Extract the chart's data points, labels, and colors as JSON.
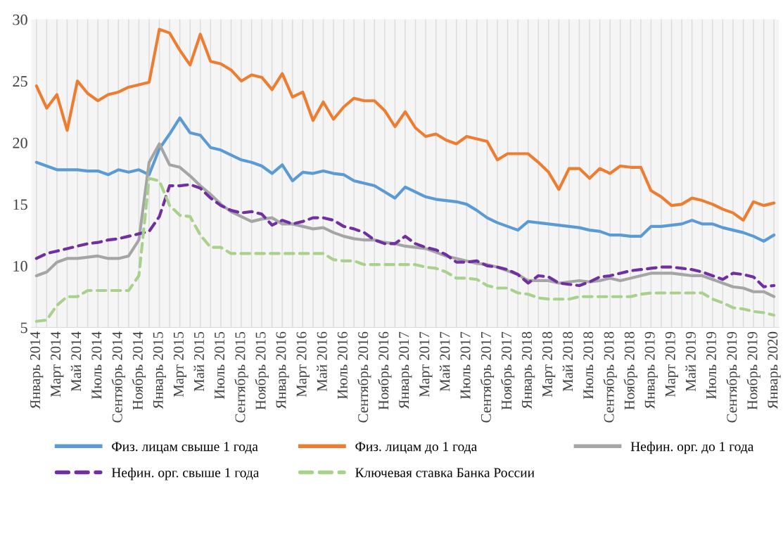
{
  "chart_data": {
    "type": "line",
    "categories": [
      "Январь 2014",
      null,
      "Март 2014",
      null,
      "Май 2014",
      null,
      "Июль 2014",
      null,
      "Сентябрь 2014",
      null,
      "Ноябрь 2014",
      null,
      "Январь 2015",
      null,
      "Март 2015",
      null,
      "Май 2015",
      null,
      "Июль 2015",
      null,
      "Сентябрь 2015",
      null,
      "Ноябрь 2015",
      null,
      "Январь 2016",
      null,
      "Март 2016",
      null,
      "Май 2016",
      null,
      "Июль 2016",
      null,
      "Сентябрь 2016",
      null,
      "Ноябрь 2016",
      null,
      "Январь 2017",
      null,
      "Март 2017",
      null,
      "Май 2017",
      null,
      "Июль 2017",
      null,
      "Сентябрь 2017",
      null,
      "Ноябрь 2017",
      null,
      "Январь 2018",
      null,
      "Март 2018",
      null,
      "Май 2018",
      null,
      "Июль 2018",
      null,
      "Сентябрь 2018",
      null,
      "Ноябрь 2018",
      null,
      "Январь 2019",
      null,
      "Март 2019",
      null,
      "Май 2019",
      null,
      "Июль 2019",
      null,
      "Сентябрь 2019",
      null,
      "Ноябрь 2019",
      null,
      "Январь 2020"
    ],
    "series": [
      {
        "name": "Физ. лицам свыше 1 года",
        "color": "#5b9bd5",
        "line_style": "solid",
        "values": [
          18.4,
          18.1,
          17.8,
          17.8,
          17.8,
          17.7,
          17.7,
          17.4,
          17.8,
          17.6,
          17.8,
          17.4,
          19.5,
          20.7,
          22.0,
          20.8,
          20.6,
          19.6,
          19.4,
          19.0,
          18.6,
          18.4,
          18.1,
          17.5,
          18.2,
          16.9,
          17.6,
          17.5,
          17.7,
          17.5,
          17.4,
          16.9,
          16.7,
          16.5,
          16.0,
          15.5,
          16.4,
          16.0,
          15.6,
          15.4,
          15.3,
          15.2,
          15.0,
          14.5,
          13.9,
          13.5,
          13.2,
          12.9,
          13.6,
          13.5,
          13.4,
          13.3,
          13.2,
          13.1,
          12.9,
          12.8,
          12.5,
          12.5,
          12.4,
          12.4,
          13.2,
          13.2,
          13.3,
          13.4,
          13.7,
          13.4,
          13.4,
          13.1,
          12.9,
          12.7,
          12.4,
          12.0,
          12.5
        ]
      },
      {
        "name": "Физ. лицам до 1 года",
        "color": "#ed7d31",
        "line_style": "solid",
        "values": [
          24.6,
          22.8,
          23.9,
          21.0,
          25.0,
          24.0,
          23.4,
          23.9,
          24.1,
          24.5,
          24.7,
          24.9,
          29.2,
          28.9,
          27.5,
          26.3,
          28.8,
          26.6,
          26.4,
          25.9,
          25.0,
          25.5,
          25.3,
          24.3,
          25.6,
          23.7,
          24.1,
          21.8,
          23.3,
          21.9,
          22.9,
          23.6,
          23.4,
          23.4,
          22.6,
          21.3,
          22.5,
          21.2,
          20.5,
          20.7,
          20.2,
          19.9,
          20.5,
          20.3,
          20.1,
          18.6,
          19.1,
          19.1,
          19.1,
          18.4,
          17.6,
          16.2,
          17.9,
          17.9,
          17.1,
          17.9,
          17.5,
          18.1,
          18.0,
          18.0,
          16.1,
          15.6,
          14.9,
          15.0,
          15.5,
          15.3,
          15.0,
          14.6,
          14.3,
          13.7,
          15.2,
          14.9,
          15.1
        ]
      },
      {
        "name": "Нефин. орг. до 1 года",
        "color": "#a5a5a5",
        "line_style": "solid",
        "values": [
          9.2,
          9.5,
          10.3,
          10.6,
          10.6,
          10.7,
          10.8,
          10.6,
          10.6,
          10.8,
          12.1,
          18.4,
          19.9,
          18.2,
          18.0,
          17.3,
          16.5,
          15.8,
          15.0,
          14.4,
          14.0,
          13.6,
          13.8,
          13.9,
          13.4,
          13.4,
          13.2,
          13.0,
          13.1,
          12.7,
          12.4,
          12.2,
          12.1,
          12.1,
          11.9,
          11.8,
          11.6,
          11.5,
          11.4,
          11.1,
          10.8,
          10.6,
          10.4,
          10.2,
          10.1,
          9.9,
          9.6,
          9.3,
          8.8,
          8.8,
          8.8,
          8.6,
          8.7,
          8.8,
          8.7,
          8.8,
          9.0,
          8.8,
          9.0,
          9.2,
          9.4,
          9.4,
          9.4,
          9.3,
          9.2,
          9.2,
          8.9,
          8.6,
          8.3,
          8.2,
          7.9,
          7.9,
          7.5
        ]
      },
      {
        "name": "Нефин. орг. свыше 1 года",
        "color": "#7030a0",
        "line_style": "dashed",
        "values": [
          10.6,
          11.0,
          11.2,
          11.4,
          11.6,
          11.8,
          11.9,
          12.1,
          12.2,
          12.4,
          12.6,
          12.8,
          14.0,
          16.5,
          16.5,
          16.6,
          16.3,
          15.5,
          14.9,
          14.5,
          14.3,
          14.4,
          14.2,
          13.3,
          13.7,
          13.4,
          13.6,
          13.9,
          13.9,
          13.7,
          13.2,
          13.0,
          12.7,
          12.1,
          11.8,
          11.8,
          12.4,
          11.8,
          11.5,
          11.3,
          10.9,
          10.3,
          10.3,
          10.4,
          10.0,
          9.9,
          9.7,
          9.3,
          8.6,
          9.2,
          9.1,
          8.6,
          8.5,
          8.4,
          8.7,
          9.1,
          9.2,
          9.4,
          9.6,
          9.7,
          9.8,
          9.9,
          9.9,
          9.8,
          9.7,
          9.5,
          9.2,
          8.9,
          9.4,
          9.3,
          9.1,
          8.3,
          8.4
        ]
      },
      {
        "name": "Ключевая ставка Банка России",
        "color": "#a9d18e",
        "line_style": "dashed",
        "values": [
          5.5,
          5.6,
          6.8,
          7.5,
          7.5,
          8.0,
          8.0,
          8.0,
          8.0,
          8.0,
          9.2,
          17.1,
          16.9,
          14.9,
          14.1,
          14.0,
          12.5,
          11.5,
          11.5,
          11.0,
          11.0,
          11.0,
          11.0,
          11.0,
          11.0,
          11.0,
          11.0,
          11.0,
          11.0,
          10.5,
          10.4,
          10.4,
          10.1,
          10.1,
          10.1,
          10.1,
          10.1,
          10.1,
          9.9,
          9.8,
          9.5,
          9.0,
          9.0,
          8.9,
          8.4,
          8.2,
          8.2,
          7.8,
          7.7,
          7.4,
          7.3,
          7.3,
          7.3,
          7.5,
          7.5,
          7.5,
          7.5,
          7.5,
          7.5,
          7.7,
          7.8,
          7.8,
          7.8,
          7.8,
          7.8,
          7.8,
          7.3,
          7.0,
          6.6,
          6.5,
          6.3,
          6.2,
          6.0
        ]
      }
    ],
    "ylim": [
      5,
      30
    ],
    "yticks": [
      5,
      10,
      15,
      20,
      25,
      30
    ],
    "grid": "x",
    "legend": "bottom"
  }
}
